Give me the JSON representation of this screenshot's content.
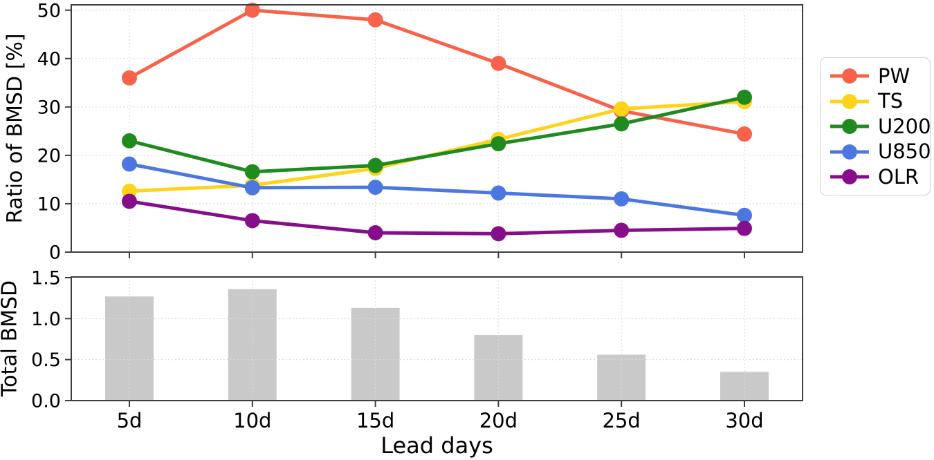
{
  "figure": {
    "background": "#ffffff",
    "frame_color": "#3d3d3d",
    "grid_color": "#dbdbdb",
    "legend_position": "right-outside"
  },
  "chart_data": [
    {
      "type": "line",
      "title": "",
      "ylabel": "Ratio of BMSD [%]",
      "xlabel": "",
      "categories": [
        "5d",
        "10d",
        "15d",
        "20d",
        "25d",
        "30d"
      ],
      "ylim": [
        0,
        51.1
      ],
      "yticks": {
        "values": [
          0,
          10,
          20,
          30,
          40,
          50
        ],
        "labels": [
          "0",
          "10",
          "20",
          "30",
          "40",
          "50"
        ]
      },
      "grid": true,
      "x_tick_labels_shown": false,
      "series": [
        {
          "name": "PW",
          "color": "#f9624a",
          "values": [
            36.0,
            50.0,
            48.0,
            39.0,
            29.2,
            24.4
          ]
        },
        {
          "name": "TS",
          "color": "#ffd31b",
          "values": [
            12.6,
            13.8,
            17.3,
            23.3,
            29.6,
            31.1
          ]
        },
        {
          "name": "U200",
          "color": "#1f8b1f",
          "values": [
            23.0,
            16.6,
            17.9,
            22.4,
            26.5,
            32.0
          ]
        },
        {
          "name": "U850",
          "color": "#4d77e0",
          "values": [
            18.2,
            13.3,
            13.4,
            12.2,
            11.0,
            7.6
          ]
        },
        {
          "name": "OLR",
          "color": "#870e8b",
          "values": [
            10.5,
            6.5,
            4.0,
            3.8,
            4.5,
            4.9
          ]
        }
      ]
    },
    {
      "type": "bar",
      "title": "",
      "ylabel": "Total BMSD",
      "xlabel": "Lead days",
      "categories": [
        "5d",
        "10d",
        "15d",
        "20d",
        "25d",
        "30d"
      ],
      "ylim": [
        0,
        1.508
      ],
      "yticks": {
        "values": [
          0,
          0.5,
          1.0,
          1.5
        ],
        "labels": [
          "0.0",
          "0.5",
          "1.0",
          "1.5"
        ]
      },
      "grid": true,
      "bar_color": "#c9c9c9",
      "values": [
        1.27,
        1.36,
        1.13,
        0.8,
        0.56,
        0.35
      ]
    }
  ]
}
